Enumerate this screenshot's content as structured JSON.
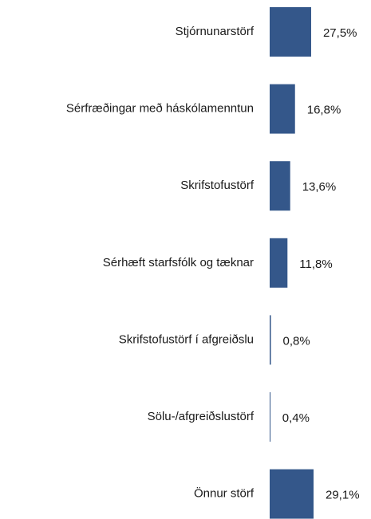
{
  "chart_data": {
    "type": "bar",
    "orientation": "horizontal",
    "categories": [
      "Stjórnunarstörf",
      "Sérfræðingar með háskólamenntun",
      "Skrifstofustörf",
      "Sérhæft starfsfólk og tæknar",
      "Skrifstofustörf í afgreiðslu",
      "Sölu-/afgreiðslustörf",
      "Önnur störf"
    ],
    "values": [
      27.5,
      16.8,
      13.6,
      11.8,
      0.8,
      0.4,
      29.1
    ],
    "value_labels": [
      "27,5%",
      "16,8%",
      "13,6%",
      "11,8%",
      "0,8%",
      "0,4%",
      "29,1%"
    ],
    "color": "#34578a"
  }
}
